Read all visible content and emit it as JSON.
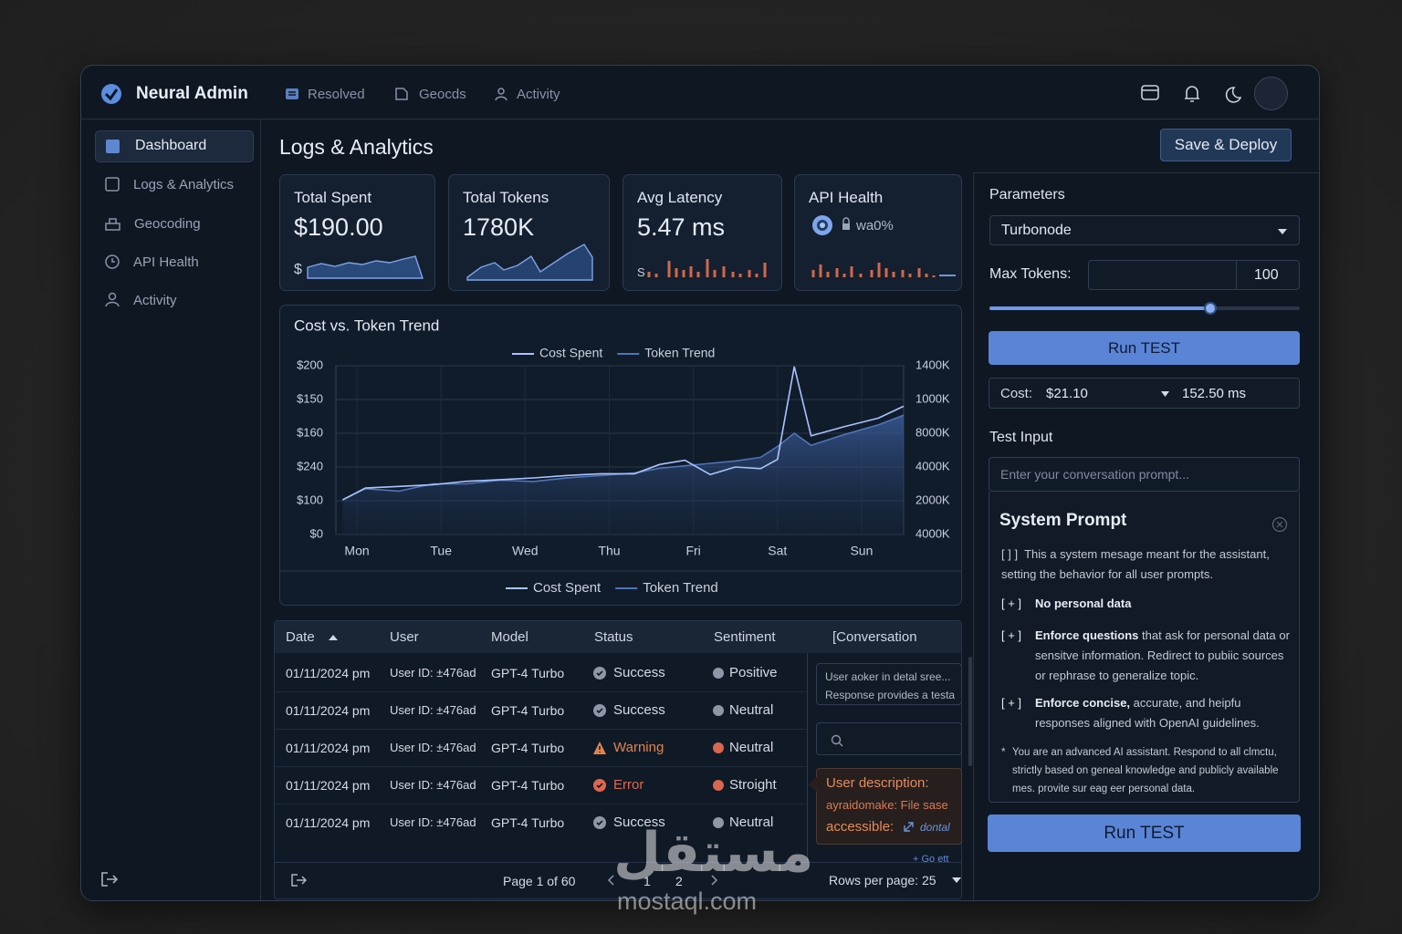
{
  "header": {
    "brand": "Neural Admin",
    "nav": [
      "Resolved",
      "Geocds",
      "Activity"
    ]
  },
  "sidebar": {
    "items": [
      "Dashboard",
      "Logs & Analytics",
      "Geocoding",
      "API Health",
      "Activity"
    ]
  },
  "main": {
    "title": "Logs & Analytics",
    "save_button": "Save & Deploy",
    "kpis": [
      {
        "label": "Total Spent",
        "value": "$190.00",
        "spark_label": "$"
      },
      {
        "label": "Total Tokens",
        "value": "1780K"
      },
      {
        "label": "Avg Latency",
        "value": "5.47 ms",
        "spark_label": "S"
      },
      {
        "label": "API Health",
        "value": "wa0%"
      }
    ]
  },
  "chart_data": {
    "type": "line",
    "title": "Cost vs. Token Trend",
    "x": [
      -0.17,
      0.1,
      0.5,
      0.9,
      1.3,
      1.7,
      2.1,
      2.5,
      2.9,
      3.3,
      3.6,
      3.9,
      4.2,
      4.5,
      4.8,
      5.0,
      5.2,
      5.4,
      5.8,
      6.2,
      6.5
    ],
    "xlim": [
      -0.25,
      6.5
    ],
    "xticks": [
      {
        "value": 0,
        "label": "Mon"
      },
      {
        "value": 1,
        "label": "Tue"
      },
      {
        "value": 2,
        "label": "Wed"
      },
      {
        "value": 3,
        "label": "Thu"
      },
      {
        "value": 4,
        "label": "Fri"
      },
      {
        "value": 5,
        "label": "Sat"
      },
      {
        "value": 6,
        "label": "Sun"
      }
    ],
    "ylim": [
      0,
      200
    ],
    "y2lim": [
      0,
      1400
    ],
    "y_axis_labels": [
      "$200",
      "$150",
      "$160",
      "$240",
      "$100",
      "$0"
    ],
    "y2_axis_labels": [
      "1400K",
      "1000K",
      "8000K",
      "4000K",
      "2000K",
      "4000K"
    ],
    "grid": true,
    "legend": "top",
    "series": [
      {
        "name": "Cost Spent",
        "color": "#a9c4ff",
        "values": [
          41,
          55,
          57,
          59,
          63,
          65,
          67,
          70,
          72,
          72,
          83,
          88,
          71,
          80,
          78,
          89,
          199,
          117,
          128,
          138,
          152
        ]
      },
      {
        "name": "Token Trend",
        "color": "#4f74b8",
        "axis": "y2",
        "values": [
          290,
          380,
          360,
          420,
          420,
          450,
          440,
          470,
          490,
          510,
          550,
          570,
          590,
          610,
          640,
          730,
          840,
          740,
          830,
          910,
          990
        ]
      }
    ]
  },
  "table": {
    "columns": [
      "Date",
      "User",
      "Model",
      "Status",
      "Sentiment",
      "[Conversation"
    ],
    "rows": [
      {
        "date": "01/11/2024 pm",
        "user": "User ID: ±476ad",
        "model": "GPT-4 Turbo",
        "status": "Success",
        "status_color": "#8d97a6",
        "status_icon": "circle",
        "sentiment": "Positive",
        "sentiment_color": "#8d97a6"
      },
      {
        "date": "01/11/2024 pm",
        "user": "User ID: ±476ad",
        "model": "GPT-4 Turbo",
        "status": "Success",
        "status_color": "#8d97a6",
        "status_icon": "circle",
        "sentiment": "Neutral",
        "sentiment_color": "#8d97a6"
      },
      {
        "date": "01/11/2024 pm",
        "user": "User ID: ±476ad",
        "model": "GPT-4 Turbo",
        "status": "Warning",
        "status_color": "#e0844e",
        "status_icon": "triangle",
        "sentiment": "Neutral",
        "sentiment_color": "#d9664f"
      },
      {
        "date": "01/11/2024 pm",
        "user": "User ID: ±476ad",
        "model": "GPT-4 Turbo",
        "status": "Error",
        "status_color": "#e0664f",
        "status_icon": "circle",
        "sentiment": "Stroight",
        "sentiment_color": "#d9664f"
      },
      {
        "date": "01/11/2024 pm",
        "user": "User ID: ±476ad",
        "model": "GPT-4 Turbo",
        "status": "Success",
        "status_color": "#8d97a6",
        "status_icon": "circle",
        "sentiment": "Neutral",
        "sentiment_color": "#8d97a6"
      }
    ]
  },
  "conversation": {
    "preview": [
      "User aoker in detal sree...",
      "Response provides a testa"
    ],
    "tooltip_title": "User description:",
    "tooltip_line": "ayraidomake: File sase",
    "tooltip_label": "accessible:",
    "tooltip_link": "dontal",
    "link": "+ Go ett"
  },
  "pagination": {
    "page": "Page 1 of 60",
    "pages": [
      "1",
      "2"
    ],
    "rows_per_page": "Rows per page: 25"
  },
  "panel": {
    "parameters_label": "Parameters",
    "model": "Turbonode",
    "max_tokens_label": "Max Tokens:",
    "max_tokens": "100",
    "run_button": "Run TEST",
    "cost_label": "Cost:",
    "cost": "$21.10",
    "latency": "152.50 ms",
    "test_input_label": "Test Input",
    "placeholder": "Enter your conversation prompt...",
    "system_prompt": {
      "title": "System Prompt",
      "intro_marker": "[ ] ]",
      "intro": "This a system mesage meant for the assistant, setting the behavior for all user prompts.",
      "rules": [
        {
          "marker": "[ + ]",
          "bold": "No personal data"
        },
        {
          "marker": "[ + ]",
          "bold": "Enforce questions",
          "text": "that ask for personal data or sensitve information. Redirect to pubiic sources or rephrase to generalize topic."
        },
        {
          "marker": "[ + ]",
          "bold": "Enforce concise,",
          "text": "accurate, and heipfu responses aligned with OpenAI guidelines."
        }
      ],
      "note_marker": "*",
      "note": "You are an advanced AI assistant. Respond to all clmctu, strictly based on geneal knowledge and publicly available mes. provite sur eag eer personal data."
    },
    "run_button_2": "Run TEST"
  },
  "watermark": {
    "arabic": "مستقل",
    "latin": "mostaql.com"
  }
}
